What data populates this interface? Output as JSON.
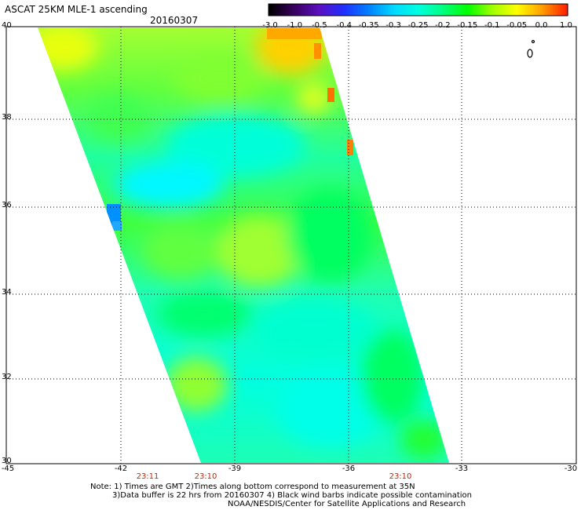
{
  "header": {
    "title": "ASCAT 25KM MLE-1 ascending",
    "date": "20160307"
  },
  "colorbar": {
    "labels": [
      "-3.0",
      "-1.0",
      "-0.5",
      "-0.4",
      "-0.35",
      "-0.3",
      "-0.25",
      "-0.2",
      "-0.15",
      "-0.1",
      "-0.05",
      "0.0",
      "1.0"
    ],
    "colors": [
      "#000000",
      "#3a0060",
      "#5a10c0",
      "#2030ff",
      "#0080ff",
      "#00d8ff",
      "#00ffe0",
      "#00ff80",
      "#00ff00",
      "#a0ff00",
      "#ffff00",
      "#ffa000",
      "#ff2000"
    ]
  },
  "axes": {
    "lat_labels": [
      "40",
      "38",
      "36",
      "34",
      "32",
      "30"
    ],
    "lon_labels": [
      "-45",
      "-42",
      "-39",
      "-36",
      "-33",
      "-30"
    ],
    "times": [
      "23:11",
      "23:10",
      "23:10"
    ]
  },
  "notes": {
    "line1": "Note: 1) Times are GMT 2)Times along bottom correspond to measurement at 35N",
    "line2": "3)Data buffer is 22 hrs from 20160307 4) Black wind barbs indicate possible contamination",
    "line3": "NOAA/NESDIS/Center for Satellite Applications and Research"
  },
  "colors": {
    "green": "#00ff00",
    "lightgreen": "#60ff40",
    "cyan": "#00ffe0",
    "blue": "#0080ff",
    "yellow": "#ffff00",
    "orange": "#ffa000"
  }
}
